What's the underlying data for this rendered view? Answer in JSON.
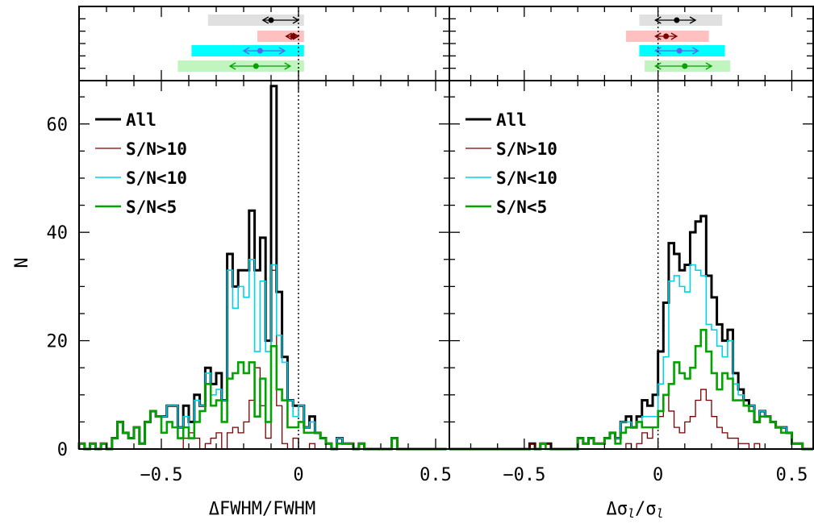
{
  "chart_data": [
    {
      "type": "histogram",
      "panel": "left",
      "xlabel": "ΔFWHM/FWHM",
      "ylabel": "N",
      "xlim": [
        -0.8,
        0.55
      ],
      "ylim": [
        0,
        68
      ],
      "xticks": [
        -0.5,
        0,
        0.5
      ],
      "xtick_labels": [
        "−0.5",
        "0",
        "0.5"
      ],
      "yticks": [
        0,
        20,
        40,
        60
      ],
      "ytick_labels": [
        "0",
        "20",
        "40",
        "60"
      ],
      "reference_line_x": 0,
      "bin_width": 0.02,
      "bin_start": -0.8,
      "legend": {
        "position": "top-left",
        "entries": [
          "All",
          "S/N>10",
          "S/N<10",
          "S/N<5"
        ]
      },
      "series": [
        {
          "name": "All",
          "color": "#000000",
          "counts": [
            1,
            0,
            1,
            0,
            1,
            0,
            2,
            5,
            3,
            2,
            4,
            1,
            5,
            7,
            6,
            6,
            8,
            8,
            4,
            8,
            5,
            10,
            8,
            15,
            12,
            14,
            9,
            36,
            30,
            33,
            33,
            44,
            33,
            39,
            20,
            67,
            29,
            17,
            9,
            8,
            8,
            4,
            6,
            3,
            2,
            1,
            0,
            2,
            1,
            1,
            0,
            1,
            0,
            0,
            0,
            0,
            0,
            2,
            0,
            0,
            0,
            0,
            0,
            0,
            0,
            0,
            0
          ]
        },
        {
          "name": "S/N>10",
          "color": "#7a0000",
          "counts": [
            0,
            0,
            0,
            0,
            0,
            0,
            0,
            0,
            0,
            0,
            0,
            0,
            0,
            0,
            0,
            0,
            0,
            0,
            0,
            2,
            3,
            2,
            0,
            1,
            2,
            3,
            0,
            3,
            4,
            3,
            5,
            9,
            15,
            8,
            2,
            33,
            8,
            1,
            0,
            2,
            0,
            0,
            1,
            0,
            0,
            0,
            0,
            0,
            0,
            0,
            0,
            0,
            0,
            0,
            0,
            0,
            0,
            0,
            0,
            0,
            0,
            0,
            0,
            0,
            0,
            0,
            0
          ]
        },
        {
          "name": "S/N<10",
          "color": "#00d3e8",
          "counts": [
            1,
            0,
            1,
            0,
            1,
            0,
            2,
            5,
            3,
            2,
            4,
            1,
            5,
            7,
            6,
            6,
            8,
            8,
            4,
            6,
            2,
            9,
            8,
            14,
            10,
            11,
            9,
            33,
            26,
            30,
            28,
            35,
            18,
            31,
            18,
            34,
            21,
            16,
            9,
            6,
            8,
            4,
            5,
            3,
            2,
            1,
            0,
            2,
            1,
            1,
            0,
            1,
            0,
            0,
            0,
            0,
            0,
            2,
            0,
            0,
            0,
            0,
            0,
            0,
            0,
            0,
            0
          ]
        },
        {
          "name": "S/N<5",
          "color": "#00a300",
          "counts": [
            1,
            0,
            1,
            0,
            1,
            0,
            2,
            5,
            3,
            2,
            4,
            1,
            5,
            7,
            6,
            3,
            5,
            4,
            2,
            4,
            2,
            5,
            7,
            12,
            8,
            9,
            5,
            13,
            14,
            16,
            14,
            16,
            6,
            13,
            5,
            19,
            11,
            9,
            4,
            4,
            5,
            3,
            3,
            3,
            2,
            1,
            0,
            1,
            1,
            1,
            0,
            1,
            0,
            0,
            0,
            0,
            0,
            2,
            0,
            0,
            0,
            0,
            0,
            0,
            0,
            0,
            0
          ]
        }
      ],
      "summary_bars": [
        {
          "series": "All",
          "center": -0.1,
          "err_lo": -0.13,
          "err_hi": 0.0,
          "band": [
            -0.33,
            0.02
          ]
        },
        {
          "series": "S/N>10",
          "center": -0.02,
          "err_lo": -0.045,
          "err_hi": 0.0,
          "band": [
            -0.15,
            0.02
          ]
        },
        {
          "series": "S/N<10",
          "center": -0.14,
          "err_lo": -0.2,
          "err_hi": -0.05,
          "band": [
            -0.39,
            0.02
          ]
        },
        {
          "series": "S/N<5",
          "center": -0.155,
          "err_lo": -0.25,
          "err_hi": -0.03,
          "band": [
            -0.44,
            0.02
          ]
        }
      ]
    },
    {
      "type": "histogram",
      "panel": "right",
      "xlabel": "Δσ",
      "xlabel_sub": "l",
      "xlabel_den": "σ",
      "xlabel_den_sub": "l",
      "ylabel": "N",
      "xlim": [
        -0.78,
        0.58
      ],
      "ylim": [
        0,
        68
      ],
      "xticks": [
        -0.5,
        0,
        0.5
      ],
      "xtick_labels": [
        "−0.5",
        "0",
        "0.5"
      ],
      "reference_line_x": 0,
      "bin_width": 0.02,
      "bin_start": -0.78,
      "legend": {
        "position": "top-left",
        "entries": [
          "All",
          "S/N>10",
          "S/N<10",
          "S/N<5"
        ]
      },
      "series": [
        {
          "name": "All",
          "color": "#000000",
          "counts": [
            0,
            0,
            0,
            0,
            0,
            0,
            0,
            0,
            0,
            0,
            0,
            0,
            0,
            0,
            0,
            1,
            0,
            1,
            1,
            0,
            0,
            0,
            0,
            0,
            2,
            1,
            2,
            1,
            1,
            2,
            3,
            2,
            5,
            6,
            4,
            6,
            9,
            8,
            10,
            18,
            27,
            38,
            36,
            33,
            34,
            40,
            42,
            43,
            32,
            28,
            23,
            20,
            22,
            14,
            11,
            9,
            8,
            5,
            7,
            6,
            5,
            4,
            4,
            3,
            1,
            1,
            0,
            0,
            0
          ]
        },
        {
          "name": "S/N>10",
          "color": "#7a0000",
          "counts": [
            0,
            0,
            0,
            0,
            0,
            0,
            0,
            0,
            0,
            0,
            0,
            0,
            0,
            0,
            0,
            1,
            0,
            0,
            1,
            0,
            0,
            0,
            0,
            0,
            0,
            0,
            0,
            0,
            0,
            0,
            0,
            0,
            0,
            1,
            0,
            1,
            3,
            2,
            4,
            6,
            10,
            7,
            4,
            3,
            5,
            6,
            9,
            11,
            9,
            6,
            4,
            3,
            2,
            2,
            1,
            1,
            0,
            1,
            0,
            0,
            0,
            0,
            0,
            0,
            0,
            0,
            0,
            0,
            0
          ]
        },
        {
          "name": "S/N<10",
          "color": "#00d3e8",
          "counts": [
            0,
            0,
            0,
            0,
            0,
            0,
            0,
            0,
            0,
            0,
            0,
            0,
            0,
            0,
            0,
            0,
            0,
            1,
            0,
            0,
            0,
            0,
            0,
            0,
            2,
            1,
            2,
            1,
            1,
            2,
            3,
            2,
            5,
            5,
            4,
            5,
            6,
            6,
            6,
            12,
            17,
            31,
            32,
            30,
            29,
            34,
            33,
            32,
            23,
            22,
            19,
            17,
            20,
            12,
            10,
            8,
            8,
            5,
            7,
            6,
            5,
            4,
            4,
            3,
            1,
            1,
            0,
            0,
            0
          ]
        },
        {
          "name": "S/N<5",
          "color": "#00a300",
          "counts": [
            0,
            0,
            0,
            0,
            0,
            0,
            0,
            0,
            0,
            0,
            0,
            0,
            0,
            0,
            0,
            0,
            0,
            1,
            0,
            0,
            0,
            0,
            0,
            0,
            2,
            1,
            2,
            1,
            1,
            2,
            3,
            1,
            3,
            4,
            4,
            5,
            4,
            4,
            4,
            7,
            10,
            12,
            16,
            14,
            13,
            15,
            19,
            22,
            18,
            14,
            11,
            14,
            13,
            9,
            9,
            8,
            7,
            5,
            6,
            6,
            5,
            4,
            3,
            3,
            1,
            1,
            0,
            0,
            0
          ]
        }
      ],
      "summary_bars": [
        {
          "series": "All",
          "center": 0.07,
          "err_lo": -0.01,
          "err_hi": 0.14,
          "band": [
            -0.07,
            0.24
          ]
        },
        {
          "series": "S/N>10",
          "center": 0.03,
          "err_lo": -0.01,
          "err_hi": 0.07,
          "band": [
            -0.12,
            0.19
          ]
        },
        {
          "series": "S/N<10",
          "center": 0.08,
          "err_lo": -0.01,
          "err_hi": 0.15,
          "band": [
            -0.07,
            0.25
          ]
        },
        {
          "series": "S/N<5",
          "center": 0.1,
          "err_lo": -0.01,
          "err_hi": 0.2,
          "band": [
            -0.05,
            0.27
          ]
        }
      ]
    }
  ],
  "style": {
    "band_colors": {
      "All": "#e0e0e0",
      "S/N>10": "#ffc0c0",
      "S/N<10": "#00ffff",
      "S/N<5": "#c0f5c0"
    },
    "summary_line_colors": {
      "All": "#000000",
      "S/N>10": "#7a0000",
      "S/N<10": "#4a6cf7",
      "S/N<5": "#00a300"
    }
  }
}
